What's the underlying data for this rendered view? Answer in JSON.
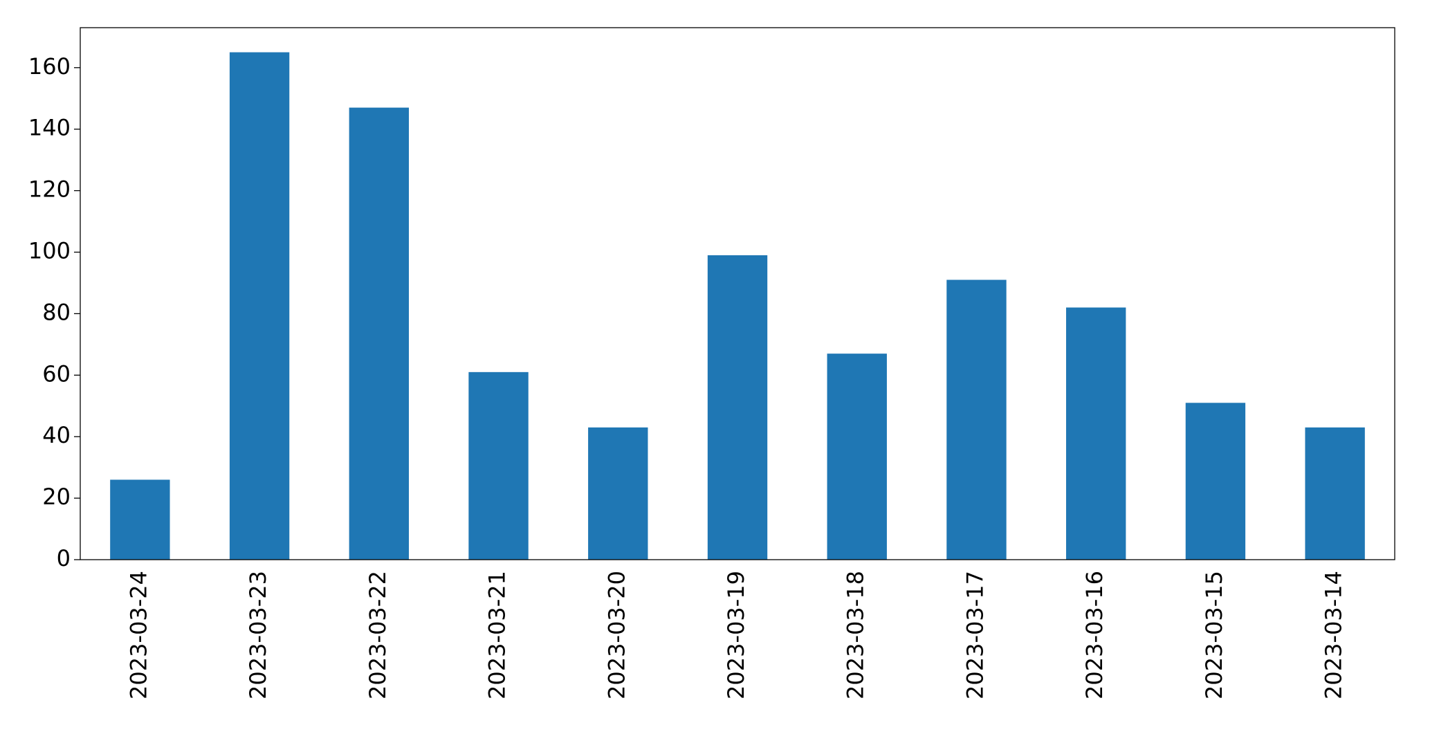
{
  "chart_data": {
    "type": "bar",
    "categories": [
      "2023-03-24",
      "2023-03-23",
      "2023-03-22",
      "2023-03-21",
      "2023-03-20",
      "2023-03-19",
      "2023-03-18",
      "2023-03-17",
      "2023-03-16",
      "2023-03-15",
      "2023-03-14"
    ],
    "values": [
      26,
      165,
      147,
      61,
      43,
      99,
      67,
      91,
      82,
      51,
      43
    ],
    "color": "#1f77b4",
    "ylim": [
      0,
      173
    ],
    "yticks": [
      0,
      20,
      40,
      60,
      80,
      100,
      120,
      140,
      160
    ],
    "grid": false
  }
}
